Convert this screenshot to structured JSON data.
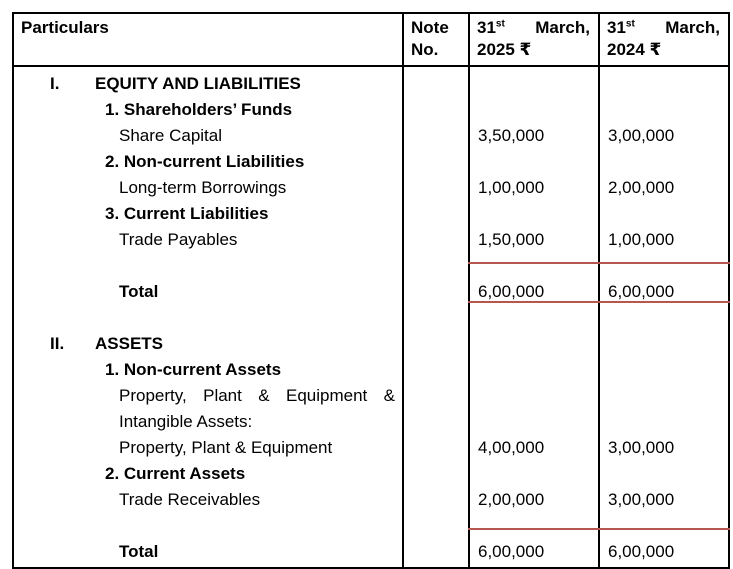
{
  "colors": {
    "table_border": "#000000",
    "total_rule": "#b5564f"
  },
  "table": {
    "header": {
      "particulars": "Particulars",
      "note_line1": "Note",
      "note_line2": "No.",
      "col2025": {
        "day": "31",
        "sup": "st",
        "month": "March,",
        "year": "2025 ₹"
      },
      "col2024": {
        "day": "31",
        "sup": "st",
        "month": "March,",
        "year": "2024 ₹"
      }
    },
    "rows": [
      {
        "kind": "section",
        "roman": "I.",
        "label": "EQUITY AND LIABILITIES",
        "v2025": "",
        "v2024": ""
      },
      {
        "kind": "numbered",
        "label": "1. Shareholders’ Funds",
        "v2025": "",
        "v2024": ""
      },
      {
        "kind": "item",
        "label": "Share Capital",
        "v2025": "3,50,000",
        "v2024": "3,00,000"
      },
      {
        "kind": "numbered",
        "label": "2. Non-current Liabilities",
        "v2025": "",
        "v2024": ""
      },
      {
        "kind": "item",
        "label": "Long-term Borrowings",
        "v2025": "1,00,000",
        "v2024": "2,00,000"
      },
      {
        "kind": "numbered",
        "label": "3. Current Liabilities",
        "v2025": "",
        "v2024": ""
      },
      {
        "kind": "item",
        "label": "Trade Payables",
        "v2025": "1,50,000",
        "v2024": "1,00,000"
      },
      {
        "kind": "blank",
        "label": "",
        "v2025": "",
        "v2024": ""
      },
      {
        "kind": "total",
        "label": "Total",
        "v2025": "6,00,000",
        "v2024": "6,00,000"
      },
      {
        "kind": "blank",
        "label": "",
        "v2025": "",
        "v2024": ""
      },
      {
        "kind": "section",
        "roman": "II.",
        "label": "ASSETS",
        "v2025": "",
        "v2024": ""
      },
      {
        "kind": "numbered",
        "label": "1. Non-current Assets",
        "v2025": "",
        "v2024": ""
      },
      {
        "kind": "item-justify",
        "label": "Property, Plant & Equipment &",
        "v2025": "",
        "v2024": ""
      },
      {
        "kind": "item",
        "label": "Intangible Assets:",
        "v2025": "",
        "v2024": ""
      },
      {
        "kind": "item",
        "label": "Property, Plant & Equipment",
        "v2025": "4,00,000",
        "v2024": "3,00,000"
      },
      {
        "kind": "numbered",
        "label": "2. Current Assets",
        "v2025": "",
        "v2024": ""
      },
      {
        "kind": "item",
        "label": "Trade Receivables",
        "v2025": "2,00,000",
        "v2024": "3,00,000"
      },
      {
        "kind": "blank",
        "label": "",
        "v2025": "",
        "v2024": ""
      },
      {
        "kind": "total",
        "label": "Total",
        "v2025": "6,00,000",
        "v2024": "6,00,000"
      }
    ]
  }
}
